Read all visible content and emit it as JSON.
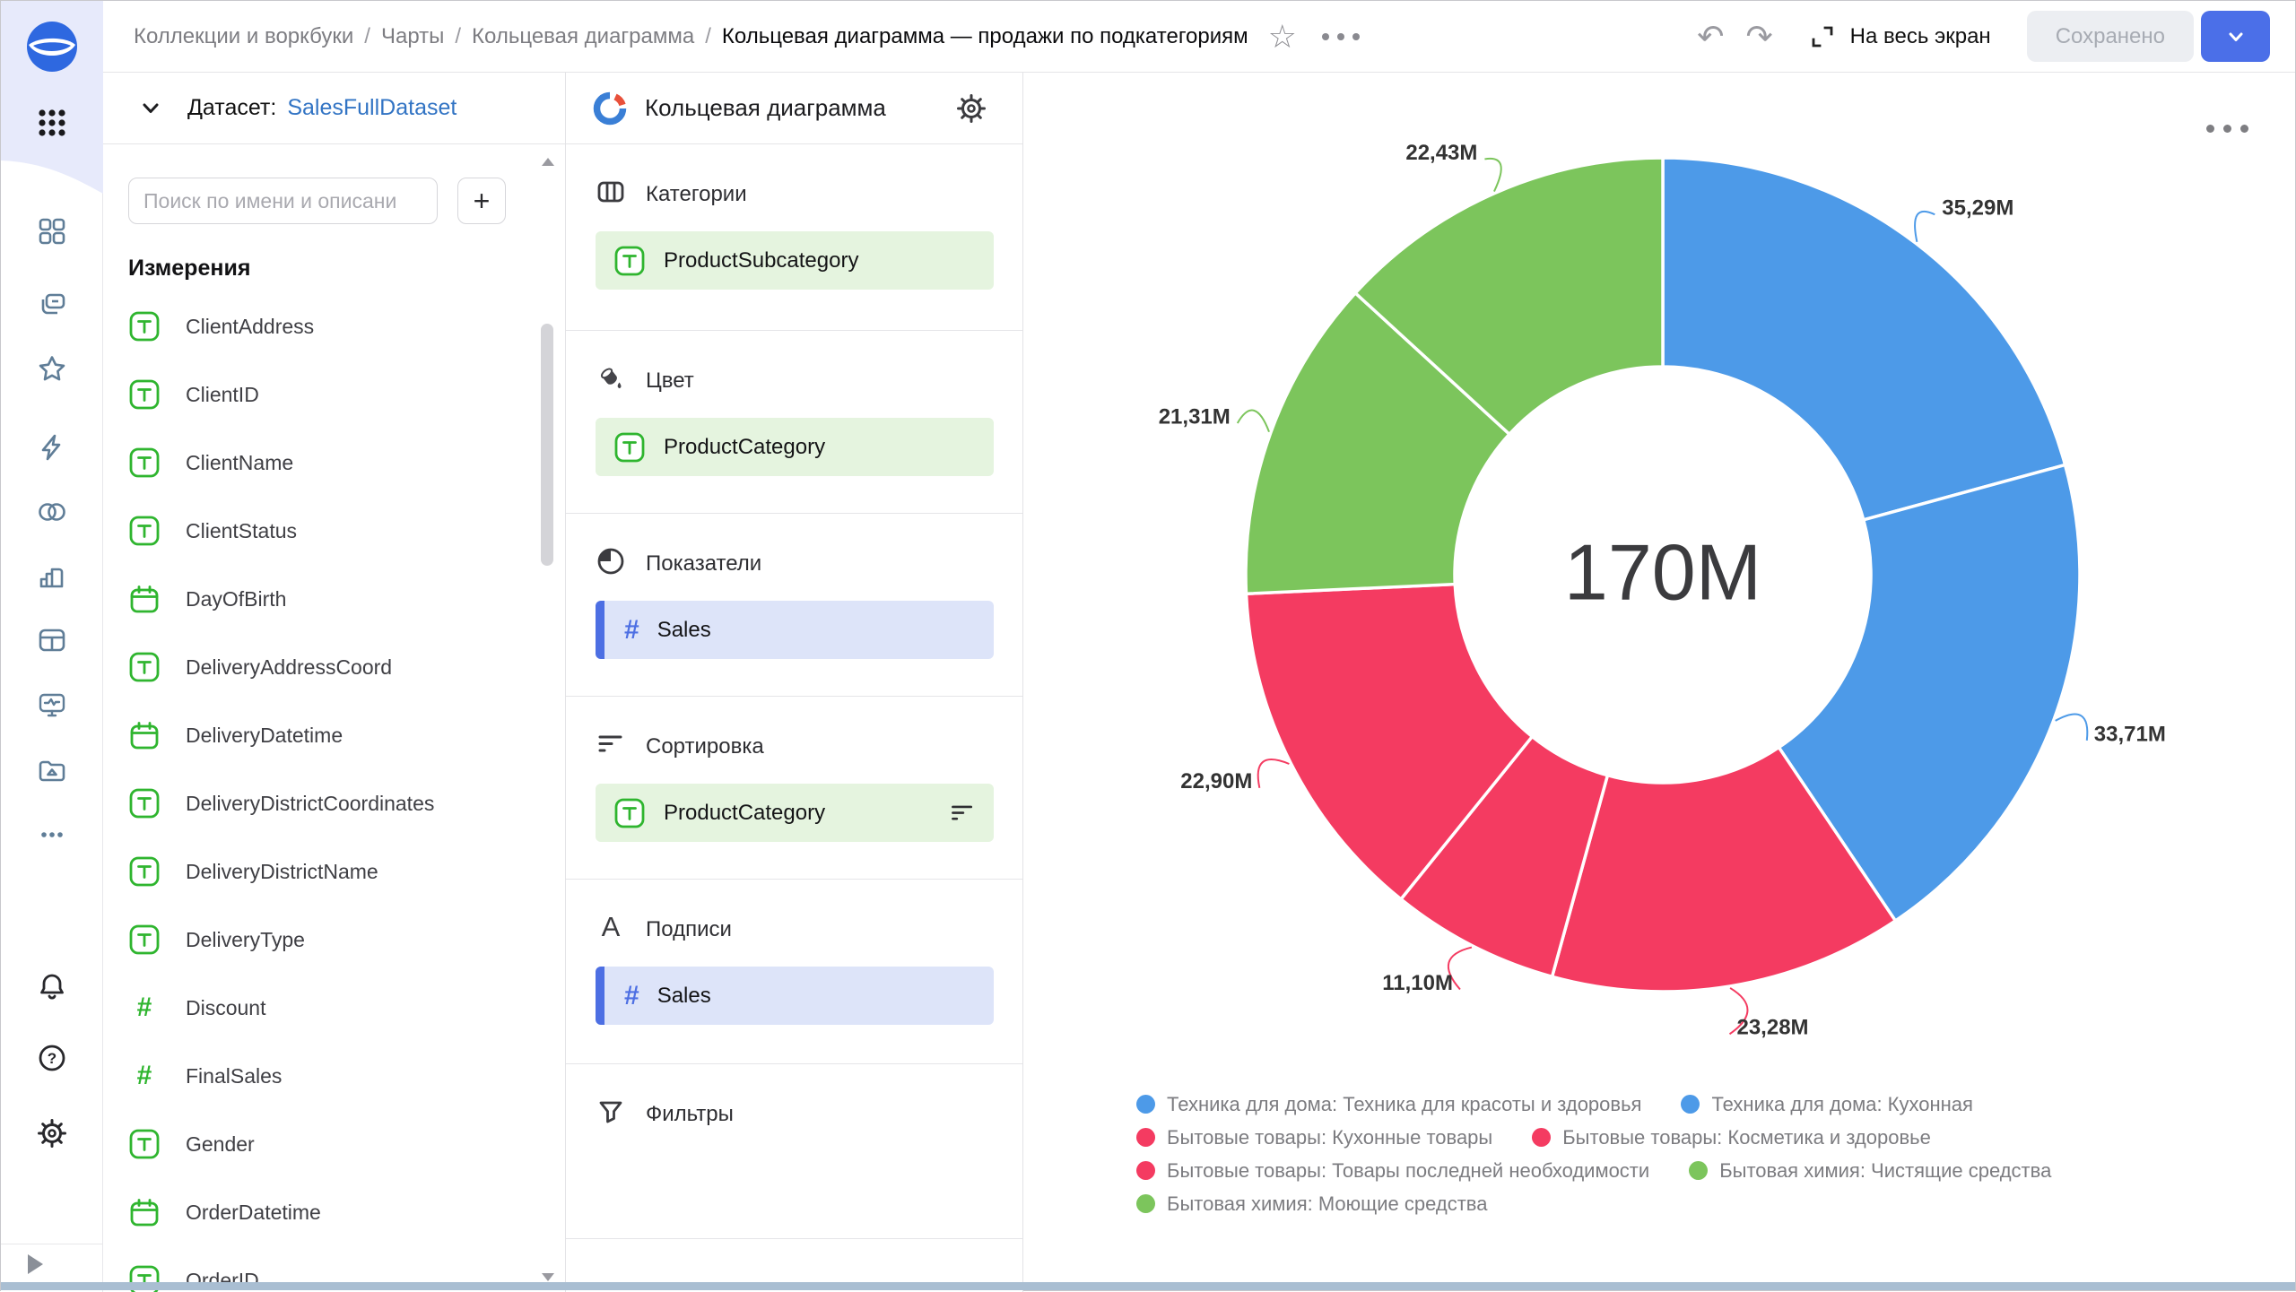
{
  "topbar": {
    "breadcrumb": [
      "Коллекции и воркбуки",
      "Чарты",
      "Кольцевая диаграмма"
    ],
    "title": "Кольцевая диаграмма — продажи по подкатегориям",
    "fullscreen_label": "На весь экран",
    "saved_button": "Сохранено"
  },
  "sidebar": {
    "icons": [
      "datalens-logo",
      "apps-grid",
      "dashboards",
      "workbooks",
      "favorites",
      "quick-actions",
      "connections",
      "charts",
      "datasets",
      "monitoring",
      "storage",
      "more",
      "notifications",
      "help",
      "settings",
      "expand"
    ]
  },
  "dataset_panel": {
    "label": "Датасет:",
    "dataset_name": "SalesFullDataset",
    "search_placeholder": "Поиск по имени и описани",
    "add_button": "+",
    "section_title": "Измерения",
    "fields": [
      {
        "name": "ClientAddress",
        "type": "string"
      },
      {
        "name": "ClientID",
        "type": "string"
      },
      {
        "name": "ClientName",
        "type": "string"
      },
      {
        "name": "ClientStatus",
        "type": "string"
      },
      {
        "name": "DayOfBirth",
        "type": "date"
      },
      {
        "name": "DeliveryAddressCoord",
        "type": "string"
      },
      {
        "name": "DeliveryDatetime",
        "type": "date"
      },
      {
        "name": "DeliveryDistrictCoordinates",
        "type": "string"
      },
      {
        "name": "DeliveryDistrictName",
        "type": "string"
      },
      {
        "name": "DeliveryType",
        "type": "string"
      },
      {
        "name": "Discount",
        "type": "number"
      },
      {
        "name": "FinalSales",
        "type": "number"
      },
      {
        "name": "Gender",
        "type": "string"
      },
      {
        "name": "OrderDatetime",
        "type": "date"
      },
      {
        "name": "OrderID",
        "type": "string"
      }
    ]
  },
  "config_panel": {
    "title": "Кольцевая диаграмма",
    "sections": {
      "categories": {
        "label": "Категории",
        "chip": {
          "name": "ProductSubcategory",
          "kind": "dimension"
        }
      },
      "color": {
        "label": "Цвет",
        "chip": {
          "name": "ProductCategory",
          "kind": "dimension"
        }
      },
      "measures": {
        "label": "Показатели",
        "chip": {
          "name": "Sales",
          "kind": "measure"
        }
      },
      "sort": {
        "label": "Сортировка",
        "chip": {
          "name": "ProductCategory",
          "kind": "dimension",
          "trailing": "sort-icon"
        }
      },
      "labels": {
        "label": "Подписи",
        "chip": {
          "name": "Sales",
          "kind": "measure"
        }
      },
      "filters": {
        "label": "Фильтры"
      }
    }
  },
  "chart_data": {
    "type": "donut",
    "center_total": "170M",
    "units": "M",
    "palette": {
      "blue": "#4d9ae8",
      "red": "#f43b61",
      "green": "#7cc55c"
    },
    "slices": [
      {
        "name": "Техника для дома: Техника для красоты и здоровья",
        "value": 35.29,
        "label": "35,29M",
        "color": "#4d9ae8"
      },
      {
        "name": "Техника для дома: Кухонная",
        "value": 33.71,
        "label": "33,71M",
        "color": "#4d9ae8"
      },
      {
        "name": "Бытовые товары: Кухонные товары",
        "value": 23.28,
        "label": "23,28M",
        "color": "#f43b61"
      },
      {
        "name": "Бытовые товары: Косметика и здоровье",
        "value": 11.1,
        "label": "11,10M",
        "color": "#f43b61"
      },
      {
        "name": "Бытовые товары: Товары последней необходимости",
        "value": 22.9,
        "label": "22,90M",
        "color": "#f43b61"
      },
      {
        "name": "Бытовая химия: Чистящие средства",
        "value": 21.31,
        "label": "21,31M",
        "color": "#7cc55c"
      },
      {
        "name": "Бытовая химия: Моющие средства",
        "value": 22.43,
        "label": "22,43M",
        "color": "#7cc55c"
      }
    ],
    "legend_rows": [
      [
        {
          "label": "Техника для дома: Техника для красоты и здоровья",
          "color": "#4d9ae8"
        },
        {
          "label": "Техника для дома: Кухонная",
          "color": "#4d9ae8"
        }
      ],
      [
        {
          "label": "Бытовые товары: Кухонные товары",
          "color": "#f43b61"
        },
        {
          "label": "Бытовые товары: Косметика и здоровье",
          "color": "#f43b61"
        }
      ],
      [
        {
          "label": "Бытовые товары: Товары последней необходимости",
          "color": "#f43b61"
        },
        {
          "label": "Бытовая химия: Чистящие средства",
          "color": "#7cc55c"
        }
      ],
      [
        {
          "label": "Бытовая химия: Моющие средства",
          "color": "#7cc55c"
        }
      ]
    ],
    "legend_position": "bottom"
  },
  "colors": {
    "accent_button": "#4b6fe8",
    "link_blue": "#3274c4",
    "field_green": "#2fb52f",
    "measure_blue": "#4d6fe3",
    "chip_green_bg": "#e5f4df",
    "chip_blue_bg": "#dde4f9"
  }
}
